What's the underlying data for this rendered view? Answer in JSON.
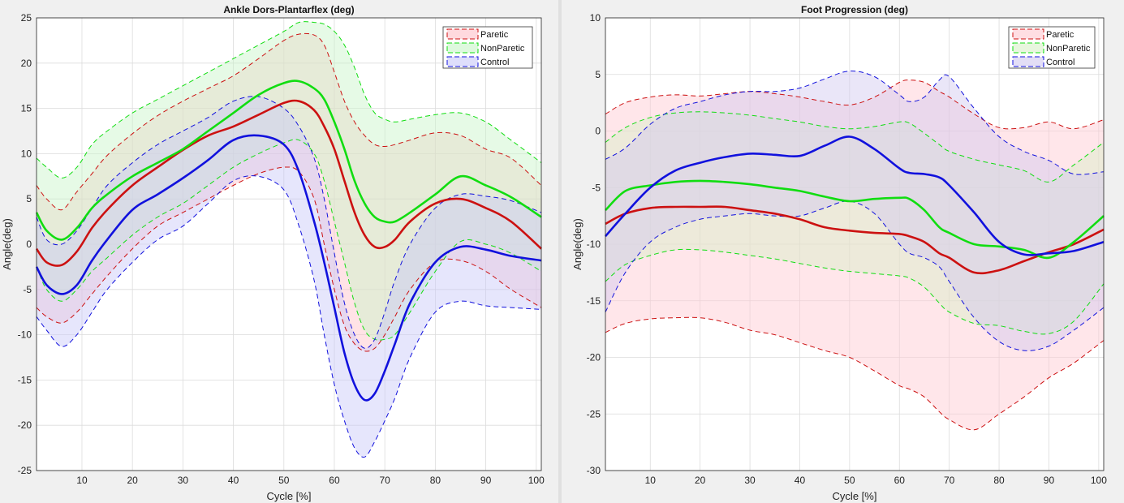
{
  "chart_data": [
    {
      "type": "line",
      "title": "Ankle Dors-Plantarflex (deg)",
      "xlabel": "Cycle [%]",
      "ylabel": "Angle(deg)",
      "xlim": [
        1,
        101
      ],
      "ylim": [
        -25,
        25
      ],
      "xticks": [
        10,
        20,
        30,
        40,
        50,
        60,
        70,
        80,
        90,
        100
      ],
      "yticks": [
        25,
        20,
        15,
        10,
        5,
        0,
        -5,
        -10,
        -15,
        -20,
        -25
      ],
      "grid": true,
      "legend_position": "top-right",
      "x": [
        1,
        3,
        6,
        9,
        12,
        15,
        20,
        25,
        30,
        35,
        40,
        45,
        50,
        53,
        56,
        58,
        60,
        62,
        64,
        66,
        68,
        70,
        72,
        75,
        80,
        85,
        90,
        95,
        101
      ],
      "series": [
        {
          "name": "Paretic",
          "color": "#cc1111",
          "fill": "#ffc0c8",
          "mean": [
            -0.5,
            -2.0,
            -2.3,
            -0.8,
            1.8,
            3.8,
            6.5,
            8.5,
            10.4,
            12.0,
            13.0,
            14.3,
            15.6,
            15.8,
            14.8,
            13.0,
            10.5,
            7.0,
            3.5,
            1.0,
            -0.3,
            -0.3,
            0.5,
            2.5,
            4.5,
            5.0,
            4.0,
            2.5,
            -0.5
          ],
          "upper": [
            6.5,
            5.0,
            3.8,
            5.8,
            7.8,
            9.8,
            12.2,
            14.2,
            15.8,
            17.2,
            18.6,
            20.5,
            22.5,
            23.2,
            23.1,
            22.0,
            19.0,
            15.8,
            13.5,
            12.0,
            11.0,
            10.8,
            11.0,
            11.5,
            12.3,
            12.0,
            10.5,
            9.5,
            6.5
          ],
          "lower": [
            -7.0,
            -8.0,
            -8.7,
            -7.5,
            -5.5,
            -3.5,
            -0.5,
            2.0,
            3.5,
            5.0,
            6.5,
            7.8,
            8.5,
            8.0,
            5.0,
            0.0,
            -5.0,
            -9.0,
            -11.0,
            -11.8,
            -11.5,
            -10.0,
            -8.0,
            -5.0,
            -2.0,
            -1.8,
            -3.0,
            -5.0,
            -7.0
          ]
        },
        {
          "name": "NonParetic",
          "color": "#11dd11",
          "fill": "#c8f5c8",
          "mean": [
            3.5,
            1.5,
            0.5,
            1.8,
            4.0,
            5.5,
            7.5,
            9.0,
            10.5,
            12.5,
            14.5,
            16.5,
            17.8,
            18.0,
            17.2,
            16.0,
            13.5,
            10.5,
            7.0,
            4.5,
            3.0,
            2.5,
            2.5,
            3.5,
            5.5,
            7.5,
            6.5,
            5.2,
            3.0
          ],
          "upper": [
            9.5,
            8.5,
            7.3,
            8.5,
            11.0,
            12.5,
            14.5,
            16.0,
            17.5,
            19.0,
            20.5,
            22.0,
            23.5,
            24.5,
            24.5,
            24.3,
            23.5,
            22.0,
            19.5,
            16.5,
            14.5,
            13.8,
            13.5,
            13.8,
            14.3,
            14.5,
            13.5,
            11.5,
            9.0
          ],
          "lower": [
            -2.5,
            -5.0,
            -6.3,
            -5.0,
            -3.0,
            -1.5,
            1.0,
            3.0,
            4.5,
            6.5,
            8.5,
            10.0,
            11.2,
            11.5,
            10.0,
            7.0,
            2.5,
            -2.0,
            -6.5,
            -9.5,
            -10.5,
            -10.5,
            -10.0,
            -7.5,
            -3.0,
            0.3,
            0.0,
            -1.0,
            -3.0
          ]
        },
        {
          "name": "Control",
          "color": "#1111dd",
          "fill": "#c8c8f8",
          "mean": [
            -2.5,
            -4.5,
            -5.5,
            -4.5,
            -1.8,
            0.5,
            3.8,
            5.5,
            7.3,
            9.3,
            11.5,
            12.0,
            11.0,
            8.0,
            2.5,
            -2.0,
            -7.0,
            -12.0,
            -15.5,
            -17.2,
            -16.5,
            -14.0,
            -11.0,
            -6.5,
            -2.0,
            -0.3,
            -0.6,
            -1.3,
            -1.8
          ],
          "upper": [
            3.0,
            0.5,
            0.0,
            1.5,
            4.0,
            6.5,
            9.0,
            11.0,
            12.5,
            14.0,
            15.8,
            16.3,
            15.0,
            13.0,
            9.5,
            5.0,
            -1.0,
            -6.5,
            -10.0,
            -11.5,
            -10.5,
            -7.5,
            -4.0,
            0.0,
            4.0,
            5.5,
            5.3,
            4.8,
            3.5
          ],
          "lower": [
            -8.0,
            -9.5,
            -11.3,
            -10.0,
            -7.5,
            -5.0,
            -2.0,
            0.5,
            2.0,
            4.5,
            7.0,
            7.5,
            6.0,
            2.0,
            -4.0,
            -10.0,
            -15.5,
            -19.5,
            -22.5,
            -23.5,
            -21.8,
            -19.5,
            -17.0,
            -12.5,
            -7.5,
            -6.3,
            -6.8,
            -7.0,
            -7.2
          ]
        }
      ]
    },
    {
      "type": "line",
      "title": "Foot Progression (deg)",
      "xlabel": "Cycle [%]",
      "ylabel": "Angle(deg)",
      "xlim": [
        1,
        101
      ],
      "ylim": [
        -30,
        10
      ],
      "xticks": [
        10,
        20,
        30,
        40,
        50,
        60,
        70,
        80,
        90,
        100
      ],
      "yticks": [
        10,
        5,
        0,
        -5,
        -10,
        -15,
        -20,
        -25,
        -30
      ],
      "grid": true,
      "legend_position": "top-right",
      "x": [
        1,
        5,
        10,
        15,
        20,
        25,
        30,
        35,
        40,
        45,
        50,
        55,
        60,
        62,
        65,
        68,
        70,
        75,
        80,
        85,
        90,
        95,
        101
      ],
      "series": [
        {
          "name": "Paretic",
          "color": "#cc1111",
          "fill": "#ffc8d0",
          "mean": [
            -8.2,
            -7.3,
            -6.8,
            -6.7,
            -6.7,
            -6.7,
            -7.0,
            -7.3,
            -7.8,
            -8.5,
            -8.8,
            -9.0,
            -9.1,
            -9.3,
            -9.8,
            -10.8,
            -11.2,
            -12.5,
            -12.3,
            -11.5,
            -10.7,
            -10.0,
            -8.7
          ],
          "upper": [
            1.5,
            2.5,
            3.0,
            3.2,
            3.1,
            3.3,
            3.5,
            3.3,
            3.0,
            2.6,
            2.3,
            3.0,
            4.3,
            4.5,
            4.3,
            3.5,
            3.0,
            1.5,
            0.3,
            0.3,
            0.8,
            0.2,
            1.0
          ],
          "lower": [
            -17.8,
            -17.0,
            -16.6,
            -16.5,
            -16.5,
            -16.9,
            -17.6,
            -18.0,
            -18.7,
            -19.4,
            -20.0,
            -21.2,
            -22.5,
            -22.8,
            -23.5,
            -24.8,
            -25.5,
            -26.4,
            -25.0,
            -23.5,
            -21.8,
            -20.5,
            -18.5
          ]
        },
        {
          "name": "NonParetic",
          "color": "#11dd11",
          "fill": "#d8f0c8",
          "mean": [
            -7.0,
            -5.3,
            -4.8,
            -4.5,
            -4.4,
            -4.5,
            -4.7,
            -5.0,
            -5.3,
            -5.8,
            -6.2,
            -6.0,
            -5.9,
            -6.0,
            -7.0,
            -8.5,
            -9.0,
            -10.0,
            -10.2,
            -10.5,
            -11.2,
            -9.8,
            -7.5
          ],
          "upper": [
            -1.0,
            0.3,
            1.2,
            1.6,
            1.7,
            1.6,
            1.4,
            1.1,
            0.8,
            0.4,
            0.2,
            0.4,
            0.8,
            0.7,
            -0.2,
            -1.2,
            -1.8,
            -2.5,
            -3.0,
            -3.5,
            -4.5,
            -3.0,
            -1.0
          ],
          "lower": [
            -13.3,
            -11.8,
            -11.0,
            -10.5,
            -10.5,
            -10.7,
            -11.0,
            -11.3,
            -11.7,
            -12.1,
            -12.4,
            -12.6,
            -12.8,
            -13.0,
            -13.8,
            -15.2,
            -16.0,
            -17.0,
            -17.2,
            -17.7,
            -17.9,
            -16.8,
            -13.5
          ]
        },
        {
          "name": "Control",
          "color": "#1111dd",
          "fill": "#d0c8f0",
          "mean": [
            -9.3,
            -7.3,
            -5.0,
            -3.5,
            -2.8,
            -2.3,
            -2.0,
            -2.1,
            -2.2,
            -1.3,
            -0.5,
            -1.6,
            -3.3,
            -3.7,
            -3.8,
            -4.1,
            -4.8,
            -7.2,
            -9.8,
            -10.9,
            -10.8,
            -10.6,
            -9.8
          ],
          "upper": [
            -2.5,
            -1.5,
            0.6,
            2.0,
            2.6,
            3.2,
            3.5,
            3.5,
            3.8,
            4.6,
            5.3,
            4.8,
            3.2,
            2.6,
            3.0,
            4.5,
            4.8,
            2.0,
            -0.5,
            -1.8,
            -2.6,
            -3.8,
            -3.6
          ],
          "lower": [
            -16.0,
            -12.5,
            -9.8,
            -8.5,
            -7.8,
            -7.5,
            -7.3,
            -7.5,
            -7.5,
            -6.8,
            -6.2,
            -7.3,
            -10.0,
            -10.8,
            -11.2,
            -12.0,
            -13.3,
            -16.5,
            -18.6,
            -19.4,
            -19.0,
            -17.6,
            -15.6
          ]
        }
      ]
    }
  ]
}
